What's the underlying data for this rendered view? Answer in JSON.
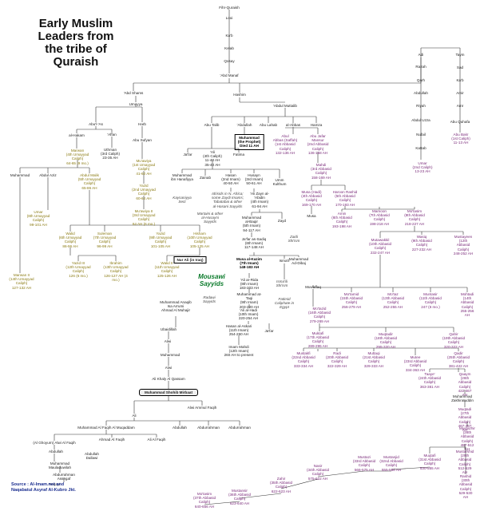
{
  "title": "Early Muslim\nLeaders from\nthe tribe of\nQuraish",
  "source": [
    "Source :  Al-Imam.net and",
    "Naqabatul Asyraf Al-Kubro Jkt."
  ],
  "nodes": {
    "fihr": "Fihr-Quraish",
    "loai": "Looi",
    "kaab": "Ka'b",
    "kelab": "Kelab",
    "qosay": "Qosay",
    "abdmanaf": "'Abd Manaf",
    "abdshams": "'Abd Shams",
    "hashim": "Hashim",
    "umayya": "Umayya",
    "abdmuttalib": "'Abdul Muttalib",
    "adi": "Adi",
    "razah": "Razah",
    "qarh": "Qarh",
    "abdullah_adi": "Abdullah",
    "riyah": "Riyah",
    "abdul_uzza": "Abdul Uzza",
    "nufail": "Nufail",
    "kattab": "Kattab",
    "umar": "Umar\n(2nd Caliph)\n13-23 AH",
    "taym": "Taym",
    "sad": "Sad",
    "kaab2": "Ka'b",
    "amir": "Amir",
    "amr": "Amr",
    "abu_quhafa": "Abu Quhafa",
    "abu_bakr": "Abu Bakr\n(1st Caliph)\n11-13 AH",
    "abul_as": "Abu'l-'As",
    "harb": "Harb",
    "alhakam": "al-Hakam",
    "affan": "'Affan",
    "abu_sufyan": "Abu Sufyan",
    "marwan": "Marwan\n(4th Umayyad\nCaliph)\n64-65 (9 mo.)",
    "uthman": "Uthman\n(3rd Caliph)\n23-35 AH",
    "muawiya": "Mu'awiya\n(1st Umayyad\nCaliph)\n41-60 AH",
    "yazid": "Yazid\n(2nd Umayyad\nCaliph)\n60-64 AH",
    "muawiya2": "Mu'awiya II\n(3rd Umayyad\nCaliph)\n64 AH (6 mo.)",
    "abu_talib": "Abu Talib",
    "abdullah": "'Abdullah",
    "abu_lahab": "Abu Lahab",
    "al_abbas": "al-Abbas",
    "hamza": "Hamza",
    "muhammad_p": "Muhammad\n(the Prophet)\nDied 11 AH",
    "jafar": "Ja'far",
    "ali": "'Ali\n(4th Caliph)\n11-40 AH\n35-40 AH",
    "fatima": "Fatima",
    "abul_abbas": "Abul\nAbbas (Saffah)\n(1st Abbasid\nCaliph)\n132-136 AH",
    "abu_jafar": "Abu Jafar\nMansur\n(2nd Abbasid\nCaliph)\n136-158 AH",
    "abdul_aziz": "Abdul Aziz",
    "abdul_malik": "Abdul Malik\n(5th Umayyad\nCaliph)\n65-86 AH",
    "muhammad_l": "Muhammad",
    "ibn_hanafiyya": "Muhammad\nibn Hanafiyya",
    "zainab": "Zainab",
    "hasan": "Hasan\n(2nd Imam)\n40-50 AH",
    "husayn": "Husayn\n(3rd Imam)\n50-61 AH",
    "umm_kulthum": "Umm\nKulthum",
    "mahdi": "Mahdi\n(3rd Abbasid\nCaliph)\n158-169 AH",
    "kaysaniyya": "Kaysaniyya\nSect",
    "idrisids": "Idrisids in N. Africa;\nsome Zaydi Imams;\nTabatabai & other\nal-Hasani Sayyids",
    "ali_zayn": "'Ali Zayn al-\n'Abidin\n(4th Imam)\n61-94 AH",
    "musa_hadi": "Musa (Hadi)\n(4th Abbasid\nCaliph)\n169-170 AH",
    "harun": "Haroon Rashid\n(5th Abbasid\nCaliph)\n170-193 AH",
    "umar2": "Umar\n(8th Umayyad\nCaliph)\n99-101 AH",
    "walid": "Walid\n(6th Umayyad\nCaliph)\n86-96 AH",
    "suleman": "Suleman\n(7th Umayyad\nCaliph)\n96-99 AH",
    "yazid2": "Yazid\n(9th Umayyad\nCaliph)\n101-105 AH",
    "hisham": "Hisham\n(10th Umayyad\nCaliph)\n105-125 AH",
    "muhammad_baqir": "Muhammad\nal-Baqir\n(5th Imam)\n94-117 AH",
    "zayd": "Zayd",
    "martaini": "Martaini & other\nal-Husayni\nSayyids",
    "musa_c": "Musa",
    "amin": "Amin\n(6th Abbasid\nCaliph)\n193-198 AH",
    "mamoon": "Mamoon\n(7th Abbasid\nCaliph)\n198-218 AH",
    "mutasim": "Mo'tasim\n(8th Abbasid\nCaliph)\n218-227 AH",
    "zaidi_shiism": "Zaidi\nShi'ism",
    "jafar_sadiq": "Ja'far as-Sadiq\n(6th Imam)\n117-148 AH",
    "marwan2": "Marwan II\n(14th Umayyad\nCaliph)\n127-132 AH",
    "yazid3": "Yazid III\n(12th Umayyad\nCaliph)\n126 (6 mo.)",
    "ibrahim": "Ibrahim\n(13th Umayyad\nCaliph)\n126-127 AH (4\nmo.)",
    "walid2": "Walid II\n(11th Umayyad\nCaliph)\n125-126 AH",
    "nur_ali": "Nur Ali (in Iraq)",
    "musa_kazim": "Musa al-Kazim\n(7th Imam)\n148-183 AH",
    "ismail": "Isma'il",
    "muhammad_ad_dibaj": "Muhammad\nAd-Dibaj",
    "mousawi": "Mousawi\nSayyids",
    "mutawakkil": "Mutawakkil\n(10th Abbasid\nCaliph)\n232-247 AH",
    "wasiq": "Wasiq\n(9th Abbasid\nCaliph)\n227-232 AH",
    "mustaeen": "Mustayeen\n(12th Abbasid\nCaliph)\n248-252 AH",
    "ali_ridha": "'Ali ar-Rida\n(8th Imam)\n183-203 AH",
    "ismaili": "Isma'ili\nShi'ism",
    "fatimid": "Fatimid\nCaliphate in\nEgypt",
    "muwaffaq": "Muwaffaq",
    "mutamid": "Mo'tamid\n(15th Abbasid\nCaliph)\n256-279 AH",
    "mutazz": "Mo'taz\n(13th Abbasid\nCaliph)\n252-255 AH",
    "muntasir": "Muntasir\n(11th Abbasid\nCaliph)\n247 (6 mo.)",
    "muhtadi": "Mohtadi\n(14th Abbasid\nCaliph)\n255-256 AH",
    "radawi": "Radawi\nSayyids",
    "muhammad_taqi": "Muhammad at-\nTaqi\n(9th Imam)\n203-220 AH",
    "ahmad_muhajir": "Muhammad Anaqib\nIsa Arrumi\nAhmad Al Muhajir",
    "mutadid": "Mo'tazid\n(16th Abbasid\nCaliph)\n279-289 AH",
    "ali_hadi": "'Ali al-Hadi\n(10th Imam)\n220-254 AH",
    "jafar2": "Ja'far",
    "muktafi": "Muktafi\n(17th Abbasid\nCaliph)\n289-295 AH",
    "muqtadir": "Muqtadir\n(18th Abbasid\nCaliph)\n295-320 AH",
    "qahir": "Qahir\n(19th Abbasid\nCaliph)\n320-322 AH",
    "hasan_askari": "Hasan al-Askari\n(11th Imam)\n254-260 AH",
    "ubaidillah": "Ubaidillah",
    "imam_mahdi": "Imam Mahdi\n(12th Imam)\n260 AH to present",
    "alwi": "Alwi",
    "muhammad_c": "Muhammad",
    "mustakfi": "Mustakfi\n(22nd Abbasid\nCaliph)\n333-334 AH",
    "radi": "Radi\n(20th Abbasid\nCaliph)\n322-329 AH",
    "muttaqi": "Muttaqi\n(21st Abbasid\nCaliph)\n329-333 AH",
    "muti": "Mutee\n(23rd Abbasid\nCaliph)\n334-363 AH",
    "qadir": "Qadir\n(25th Abbasid\nCaliph)\n381-422 AH",
    "alwi2": "Alwi",
    "ali_khali_qasam": "Ali Khaly Al Qassam",
    "tai": "Taaye'\n(24th Abbasid\nCaliph)\n363-381 AH",
    "qaim": "Qaaym\n(26th Abbasid\nCaliph)\n422-467 AH",
    "muhammad_mirbat": "Muhammad Shohib Mirbaat",
    "alwi_ammulfaqih": "Alwi Ammul Faqih",
    "muhammad_zakhira": "Muhammad\nZakhiratuddin",
    "muqtadi": "Muqtadi\n(27th Abbasid\nCaliph)\n467-487 AH",
    "ali_c": "Ali",
    "muhammad_faqih": "Muhammad Al Faqih Al Muqaddam",
    "abdullah2": "Abdullah",
    "abdurrahman": "Abdurrahman",
    "mustazhir": "Mustazhir\n(28th Abbasid\nCaliph)\n487-512 AH",
    "ghoyurn": "(Al Ghoyurn) Alwi Al Faqih",
    "ahmad_faqih": "Ahmad Al Faqih",
    "ali_faqih": "Ali Al Faqih",
    "abdullah_c": "Abdullah",
    "mustarshid": "Mustarshid\n(29th Abbasid\nCaliph)\n512-529 AH",
    "abdullah_dallawi": "Abdullah\nDallawi",
    "muhammad_mauladuwilah": "Muhammad\nMauladuwilah",
    "abdurrahman_assegaf": "Abdurrahman\nAssegaf",
    "muqtafi": "Muqtafi\n(31st Abbasid\nCaliph)\n530-555 AH",
    "rashid": "Rashid\n(30th Abbasid\nCaliph)\n529-530 AH",
    "mustanjid": "Mustanjid\n(32nd Abbasid\nCaliph)\n555-566 AH",
    "mustazi": "Mustazi\n(33rd Abbasid\nCaliph)\n566-575 AH",
    "nasir": "Nasir\n(34th Abbasid\nCaliph)\n575-622 AH",
    "zahir": "Zahir\n(35th Abbasid\nCaliph)\n622-623 AH",
    "mustansir": "Mustansir\n(36th Abbasid\nCaliph)\n623-640 AH",
    "mutasim2": "Mo'tasim\n(37th Abbasid\nCaliph)\n640-656 AH",
    "nuqayi": "Naqayi"
  }
}
